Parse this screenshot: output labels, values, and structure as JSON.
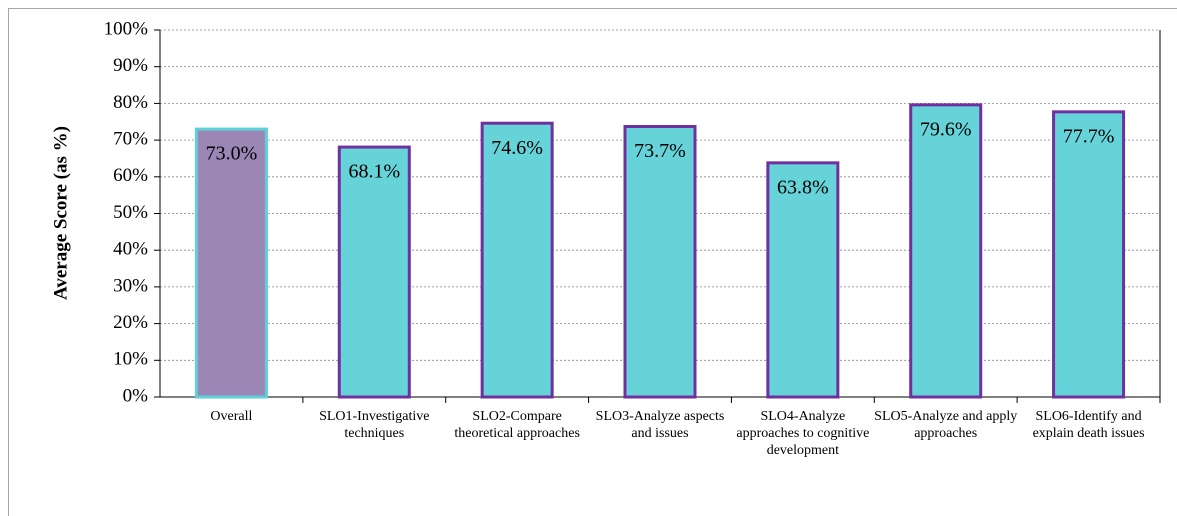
{
  "chart_data": {
    "type": "bar",
    "y_label": "Average Score (as %)",
    "categories": [
      "Overall",
      "SLO1-Investigative techniques",
      "SLO2-Compare theoretical approaches",
      "SLO3-Analyze aspects and issues",
      "SLO4-Analyze approaches to cognitive development",
      "SLO5-Analyze and apply approaches",
      "SLO6-Identify and explain death issues"
    ],
    "values": [
      73.0,
      68.1,
      74.6,
      73.7,
      63.8,
      79.6,
      77.7
    ],
    "value_labels": [
      "73.0%",
      "68.1%",
      "74.6%",
      "73.7%",
      "63.8%",
      "79.6%",
      "77.7%"
    ],
    "colors": [
      "#9b86b6",
      "#66d3d9",
      "#66d3d9",
      "#66d3d9",
      "#66d3d9",
      "#66d3d9",
      "#66d3d9"
    ],
    "edge_colors": [
      "#5fd0d8",
      "#7030a0",
      "#7030a0",
      "#7030a0",
      "#7030a0",
      "#7030a0",
      "#7030a0"
    ],
    "ylim": [
      0,
      100
    ],
    "yticks": [
      {
        "value": 0,
        "label": "0%"
      },
      {
        "value": 10,
        "label": "10%"
      },
      {
        "value": 20,
        "label": "20%"
      },
      {
        "value": 30,
        "label": "30%"
      },
      {
        "value": 40,
        "label": "40%"
      },
      {
        "value": 50,
        "label": "50%"
      },
      {
        "value": 60,
        "label": "60%"
      },
      {
        "value": 70,
        "label": "70%"
      },
      {
        "value": 80,
        "label": "80%"
      },
      {
        "value": 90,
        "label": "90%"
      },
      {
        "value": 100,
        "label": "100%"
      }
    ],
    "grid": true
  }
}
